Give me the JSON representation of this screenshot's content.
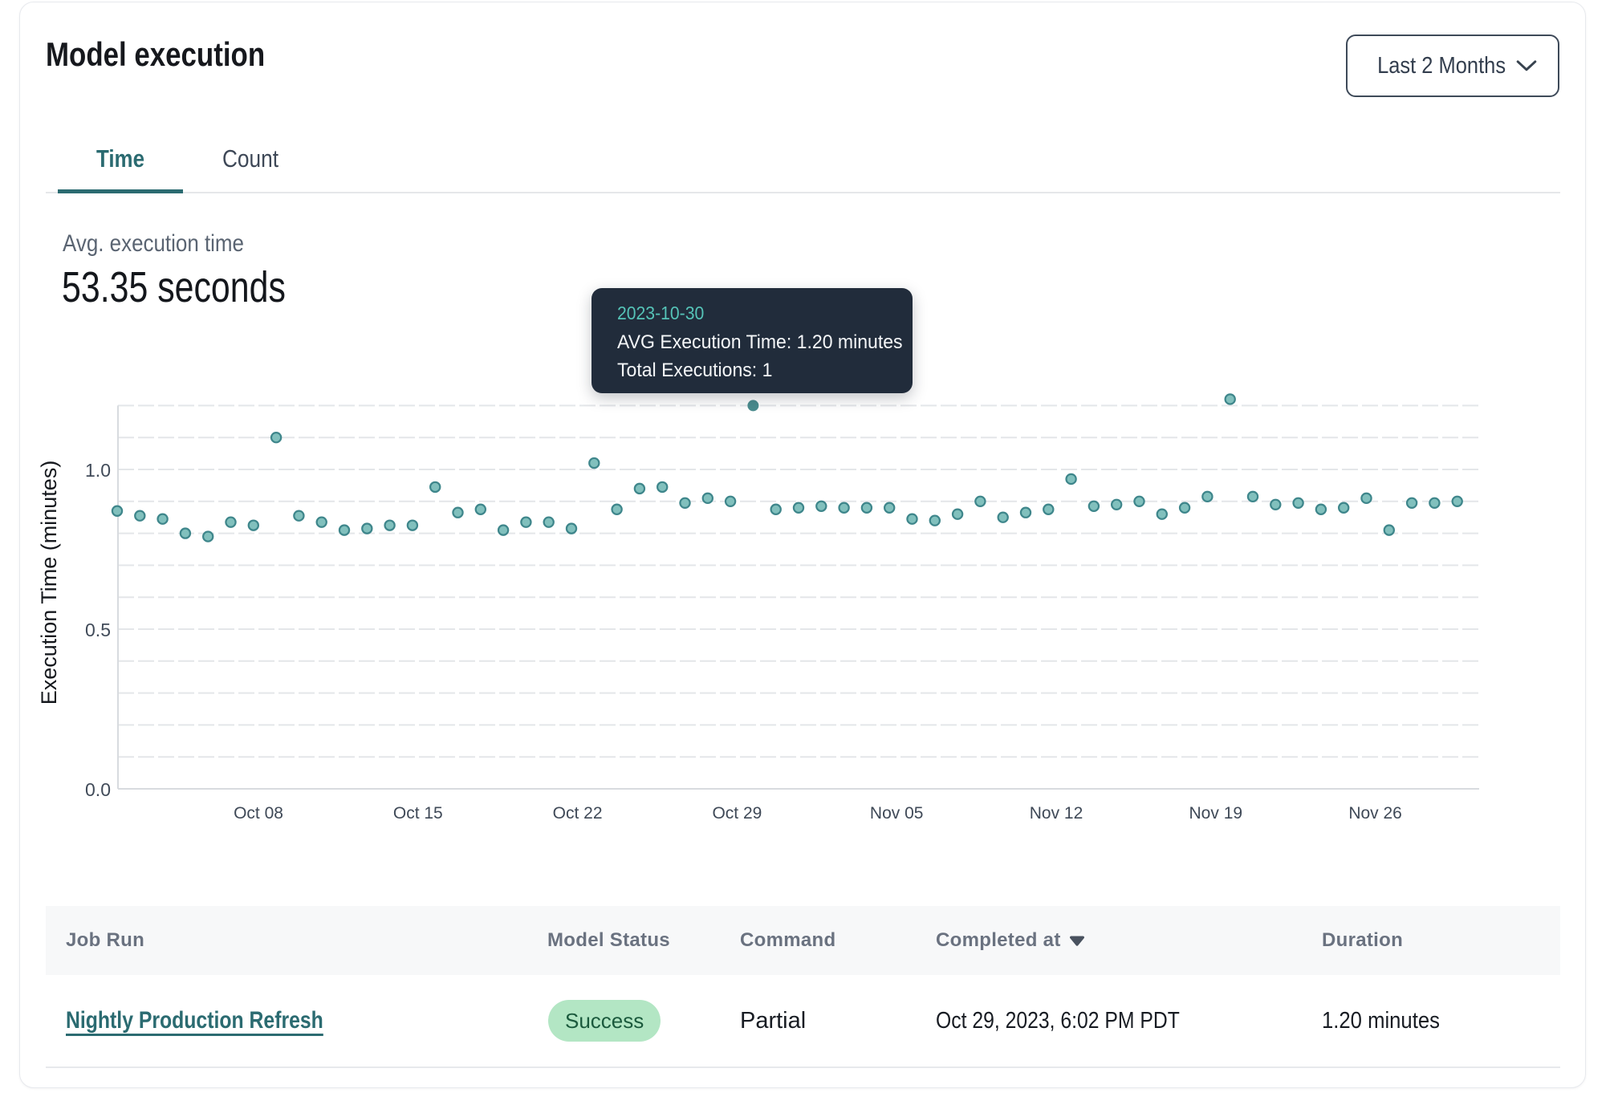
{
  "header": {
    "title": "Model execution",
    "range_selector": {
      "label": "Last 2 Months",
      "icon": "chevron-down"
    }
  },
  "tabs": [
    {
      "label": "Time",
      "active": true
    },
    {
      "label": "Count",
      "active": false
    }
  ],
  "summary": {
    "label": "Avg. execution time",
    "value": "53.35 seconds"
  },
  "tooltip": {
    "date": "2023-10-30",
    "avg_execution_time": "AVG Execution Time: 1.20 minutes",
    "total_executions": "Total Executions: 1"
  },
  "chart_data": {
    "type": "scatter",
    "title": "Avg. execution time by day",
    "xlabel": "",
    "ylabel": "Execution Time (minutes)",
    "ylim": [
      0,
      1.25
    ],
    "yticks": [
      {
        "value": 0.0,
        "label": "0.0"
      },
      {
        "value": 0.5,
        "label": "0.5"
      },
      {
        "value": 1.0,
        "label": "1.0"
      }
    ],
    "grid_interval": 0.1,
    "grid": "horizontal-dashed",
    "legend_position": "none",
    "xticks": [
      {
        "day_index": 6,
        "label": "Oct 08"
      },
      {
        "day_index": 13,
        "label": "Oct 15"
      },
      {
        "day_index": 20,
        "label": "Oct 22"
      },
      {
        "day_index": 27,
        "label": "Oct 29"
      },
      {
        "day_index": 34,
        "label": "Nov 05"
      },
      {
        "day_index": 41,
        "label": "Nov 12"
      },
      {
        "day_index": 48,
        "label": "Nov 19"
      },
      {
        "day_index": 55,
        "label": "Nov 26"
      }
    ],
    "highlight": {
      "date": "2023-10-30",
      "value": 1.2,
      "total_executions": 1
    },
    "series": [
      {
        "name": "AVG Execution Time",
        "unit": "minutes",
        "points": [
          {
            "date": "2023-10-02",
            "value": 0.87
          },
          {
            "date": "2023-10-03",
            "value": 0.855
          },
          {
            "date": "2023-10-04",
            "value": 0.845
          },
          {
            "date": "2023-10-05",
            "value": 0.8
          },
          {
            "date": "2023-10-06",
            "value": 0.79
          },
          {
            "date": "2023-10-07",
            "value": 0.835
          },
          {
            "date": "2023-10-08",
            "value": 0.825
          },
          {
            "date": "2023-10-09",
            "value": 1.1
          },
          {
            "date": "2023-10-10",
            "value": 0.855
          },
          {
            "date": "2023-10-11",
            "value": 0.835
          },
          {
            "date": "2023-10-12",
            "value": 0.81
          },
          {
            "date": "2023-10-13",
            "value": 0.815
          },
          {
            "date": "2023-10-14",
            "value": 0.825
          },
          {
            "date": "2023-10-15",
            "value": 0.825
          },
          {
            "date": "2023-10-16",
            "value": 0.945
          },
          {
            "date": "2023-10-17",
            "value": 0.865
          },
          {
            "date": "2023-10-18",
            "value": 0.875
          },
          {
            "date": "2023-10-19",
            "value": 0.81
          },
          {
            "date": "2023-10-20",
            "value": 0.835
          },
          {
            "date": "2023-10-21",
            "value": 0.835
          },
          {
            "date": "2023-10-22",
            "value": 0.815
          },
          {
            "date": "2023-10-23",
            "value": 1.02
          },
          {
            "date": "2023-10-24",
            "value": 0.875
          },
          {
            "date": "2023-10-25",
            "value": 0.94
          },
          {
            "date": "2023-10-26",
            "value": 0.945
          },
          {
            "date": "2023-10-27",
            "value": 0.895
          },
          {
            "date": "2023-10-28",
            "value": 0.91
          },
          {
            "date": "2023-10-29",
            "value": 0.9
          },
          {
            "date": "2023-10-30",
            "value": 1.2
          },
          {
            "date": "2023-10-31",
            "value": 0.875
          },
          {
            "date": "2023-11-01",
            "value": 0.88
          },
          {
            "date": "2023-11-02",
            "value": 0.885
          },
          {
            "date": "2023-11-03",
            "value": 0.88
          },
          {
            "date": "2023-11-04",
            "value": 0.88
          },
          {
            "date": "2023-11-05",
            "value": 0.88
          },
          {
            "date": "2023-11-06",
            "value": 0.845
          },
          {
            "date": "2023-11-07",
            "value": 0.84
          },
          {
            "date": "2023-11-08",
            "value": 0.86
          },
          {
            "date": "2023-11-09",
            "value": 0.9
          },
          {
            "date": "2023-11-10",
            "value": 0.85
          },
          {
            "date": "2023-11-11",
            "value": 0.865
          },
          {
            "date": "2023-11-12",
            "value": 0.875
          },
          {
            "date": "2023-11-13",
            "value": 0.97
          },
          {
            "date": "2023-11-14",
            "value": 0.885
          },
          {
            "date": "2023-11-15",
            "value": 0.89
          },
          {
            "date": "2023-11-16",
            "value": 0.9
          },
          {
            "date": "2023-11-17",
            "value": 0.86
          },
          {
            "date": "2023-11-18",
            "value": 0.88
          },
          {
            "date": "2023-11-19",
            "value": 0.915
          },
          {
            "date": "2023-11-20",
            "value": 1.22
          },
          {
            "date": "2023-11-21",
            "value": 0.915
          },
          {
            "date": "2023-11-22",
            "value": 0.89
          },
          {
            "date": "2023-11-23",
            "value": 0.895
          },
          {
            "date": "2023-11-24",
            "value": 0.875
          },
          {
            "date": "2023-11-25",
            "value": 0.88
          },
          {
            "date": "2023-11-26",
            "value": 0.91
          },
          {
            "date": "2023-11-27",
            "value": 0.81
          },
          {
            "date": "2023-11-28",
            "value": 0.895
          },
          {
            "date": "2023-11-29",
            "value": 0.895
          },
          {
            "date": "2023-11-30",
            "value": 0.9
          }
        ]
      }
    ]
  },
  "table": {
    "columns": [
      {
        "label": "Job Run",
        "sortable": false
      },
      {
        "label": "Model Status",
        "sortable": false
      },
      {
        "label": "Command",
        "sortable": false
      },
      {
        "label": "Completed at",
        "sortable": true,
        "sort_direction": "desc",
        "icon": "sort-desc"
      },
      {
        "label": "Duration",
        "sortable": false
      }
    ],
    "rows": [
      {
        "job_run": "Nightly Production Refresh",
        "model_status": "Success",
        "command": "Partial",
        "completed_at": "Oct 29, 2023, 6:02 PM PDT",
        "duration": "1.20 minutes"
      }
    ]
  },
  "colors": {
    "accent_teal": "#2b6b71",
    "dot_fill": "#81c0bd",
    "dot_stroke": "#3e868b",
    "dot_highlight": "#4a8c8e",
    "tooltip_bg": "#212c3b",
    "tooltip_date": "#55c3b7",
    "badge_bg": "#b3e6c4",
    "badge_text": "#1b5a3d",
    "grid_line": "#e4e6e9",
    "axis_line": "#d8dbdf",
    "header_bg": "#f7f8f9"
  }
}
